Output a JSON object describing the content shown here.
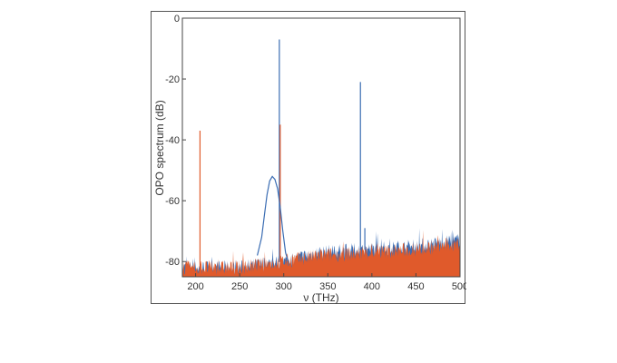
{
  "chart_data": {
    "type": "line",
    "title": "",
    "xlabel": "ν (THz)",
    "ylabel": "OPO spectrum (dB)",
    "xlim": [
      185,
      500
    ],
    "ylim": [
      -85,
      0
    ],
    "xticks": [
      200,
      250,
      300,
      350,
      400,
      450,
      500
    ],
    "yticks": [
      0,
      -20,
      -40,
      -60,
      -80
    ],
    "grid": false,
    "legend": "none",
    "series": [
      {
        "color": "#3b6db3",
        "style": "spectrum",
        "noise_floor": [
          [
            185,
            -82
          ],
          [
            250,
            -82
          ],
          [
            300,
            -80
          ],
          [
            340,
            -77
          ],
          [
            400,
            -76
          ],
          [
            450,
            -75
          ],
          [
            500,
            -73
          ]
        ],
        "peaks": [
          [
            295,
            -7
          ],
          [
            387,
            -21
          ],
          [
            392,
            -69
          ]
        ]
      },
      {
        "color": "#e05a2b",
        "style": "spectrum",
        "noise_floor": [
          [
            185,
            -82
          ],
          [
            250,
            -82
          ],
          [
            300,
            -80
          ],
          [
            340,
            -78
          ],
          [
            400,
            -77
          ],
          [
            450,
            -76
          ],
          [
            500,
            -74
          ]
        ],
        "peaks": [
          [
            205,
            -37
          ],
          [
            296,
            -35
          ]
        ]
      },
      {
        "color": "#3b6db3",
        "style": "line",
        "points": [
          [
            270,
            -78
          ],
          [
            275,
            -72
          ],
          [
            278,
            -65
          ],
          [
            281,
            -58
          ],
          [
            284,
            -53.5
          ],
          [
            287,
            -52
          ],
          [
            290,
            -53
          ],
          [
            293,
            -56
          ],
          [
            296,
            -62
          ],
          [
            299,
            -70
          ],
          [
            302,
            -77
          ],
          [
            305,
            -80
          ]
        ]
      }
    ]
  }
}
